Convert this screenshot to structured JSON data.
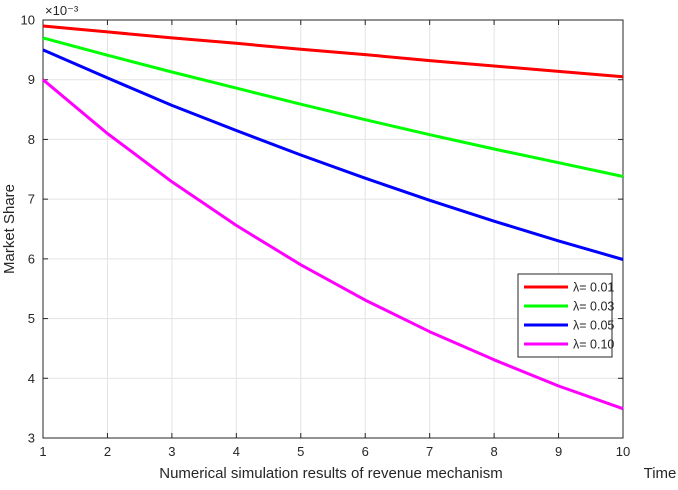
{
  "chart_data": {
    "type": "line",
    "title": "",
    "xlabel": "Numerical simulation results of revenue mechanism",
    "xlabel_right": "Time",
    "ylabel": "Market Share",
    "y_exponent_label": "×10⁻³",
    "x": [
      1,
      2,
      3,
      4,
      5,
      6,
      7,
      8,
      9,
      10
    ],
    "xlim": [
      1,
      10
    ],
    "ylim": [
      3,
      10
    ],
    "xticks": [
      "1",
      "2",
      "3",
      "4",
      "5",
      "6",
      "7",
      "8",
      "9",
      "10"
    ],
    "yticks": [
      "3",
      "4",
      "5",
      "6",
      "7",
      "8",
      "9",
      "10"
    ],
    "grid": true,
    "legend_position": "right, center",
    "series": [
      {
        "name": "λ= 0.01",
        "color": "#ff0000",
        "values": [
          9.9,
          9.8,
          9.7,
          9.61,
          9.51,
          9.42,
          9.32,
          9.23,
          9.14,
          9.05
        ]
      },
      {
        "name": "λ= 0.03",
        "color": "#00ff00",
        "values": [
          9.7,
          9.41,
          9.13,
          8.86,
          8.59,
          8.33,
          8.08,
          7.84,
          7.61,
          7.38
        ]
      },
      {
        "name": "λ= 0.05",
        "color": "#0000ff",
        "values": [
          9.5,
          9.03,
          8.57,
          8.15,
          7.74,
          7.35,
          6.98,
          6.63,
          6.3,
          5.99
        ]
      },
      {
        "name": "λ= 0.10",
        "color": "#ff00ff",
        "values": [
          9.0,
          8.1,
          7.29,
          6.56,
          5.9,
          5.31,
          4.78,
          4.31,
          3.87,
          3.49
        ]
      }
    ]
  }
}
